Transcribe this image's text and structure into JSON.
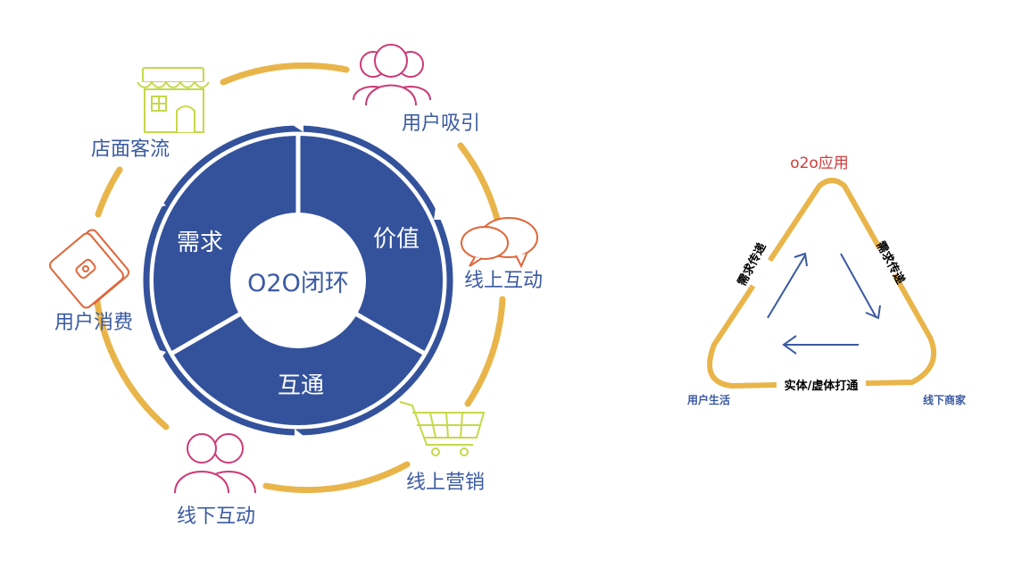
{
  "loop": {
    "center": "O2O闭环",
    "segments": [
      "需求",
      "价值",
      "互通"
    ],
    "stages": [
      "用户吸引",
      "线上互动",
      "线上营销",
      "线下互动",
      "用户消费",
      "店面客流"
    ]
  },
  "triangle": {
    "title": "o2o应用",
    "left_side": "需求传递",
    "right_side": "需求传递",
    "bottom_side": "实体/虚体打通",
    "left_corner": "用户生活",
    "right_corner": "线下商家"
  },
  "colors": {
    "navy": "#34529c",
    "label_blue": "#3b5aa3",
    "orange_ring": "#e9b54a",
    "pink_icon": "#cc3a76",
    "orange_icon": "#e0663a",
    "lime_icon": "#c5d94a",
    "triangle_title": "#d23a3a"
  }
}
